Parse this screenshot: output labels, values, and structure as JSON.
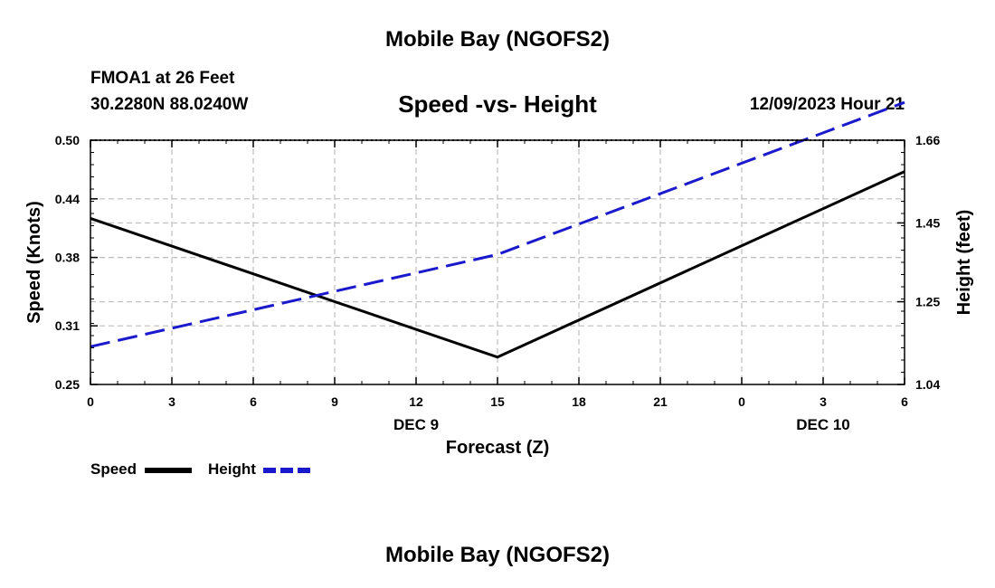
{
  "header": {
    "title": "Mobile Bay (NGOFS2)",
    "station": "FMOA1 at 26 Feet",
    "coords": "30.2280N  88.0240W",
    "subtitle": "Speed -vs- Height",
    "datetime": "12/09/2023 Hour 21"
  },
  "footer": {
    "title": "Mobile Bay (NGOFS2)"
  },
  "chart_data": {
    "type": "line",
    "xlabel": "Forecast (Z)",
    "x": [
      0,
      15,
      30
    ],
    "x_tick_labels": [
      "0",
      "3",
      "6",
      "9",
      "12",
      "15",
      "18",
      "21",
      "0",
      "3",
      "6"
    ],
    "date_labels": [
      {
        "text": "DEC 9",
        "at_tick": 4
      },
      {
        "text": "DEC 10",
        "at_tick": 9
      }
    ],
    "xlim": [
      0,
      30
    ],
    "ylabel_left": "Speed (Knots)",
    "ylim_left": [
      0.25,
      0.5
    ],
    "yticks_left": [
      "0.25",
      "0.31",
      "0.38",
      "0.44",
      "0.50"
    ],
    "ylabel_right": "Height (feet)",
    "ylim_right": [
      1.04,
      1.66
    ],
    "yticks_right": [
      "1.04",
      "1.25",
      "1.45",
      "1.66"
    ],
    "grid": true,
    "legend": "bottom-left",
    "series": [
      {
        "name": "Speed",
        "axis": "left",
        "color": "#000000",
        "style": "solid",
        "x": [
          0,
          15,
          30
        ],
        "values": [
          0.42,
          0.278,
          0.468
        ]
      },
      {
        "name": "Height",
        "axis": "right",
        "color": "#1a1acc",
        "style": "dashed",
        "x": [
          0,
          15,
          30
        ],
        "values": [
          1.136,
          1.37,
          1.756
        ]
      }
    ]
  }
}
